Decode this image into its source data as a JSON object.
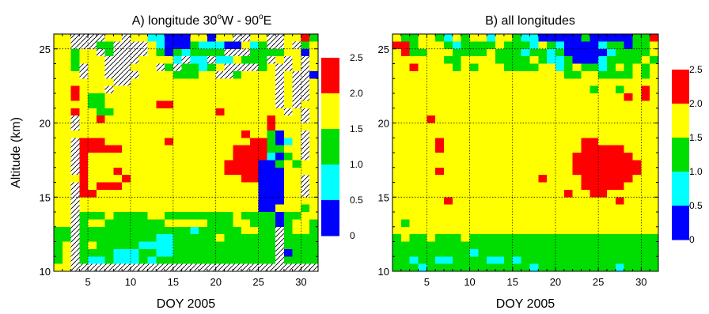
{
  "figure": {
    "colorbar_ticks": [
      "0",
      "0.5",
      "1.0",
      "1.5",
      "2.0",
      "2.5"
    ],
    "colorbar_colors": [
      "#0000ff",
      "#00ffff",
      "#00dd00",
      "#ffff00",
      "#ff0000"
    ],
    "missing_color": "#ffffff",
    "missing_hatch_color": "#000000"
  },
  "chart_data": [
    {
      "type": "heatmap",
      "title": "A) longitude 30°W - 90°E",
      "title_parts": {
        "pre": "A) longitude 30",
        "sup1": "o",
        "mid": "W - 90",
        "sup2": "o",
        "post": "E"
      },
      "xlabel": "DOY 2005",
      "ylabel": "Altitude (km)",
      "xlim": [
        1,
        32
      ],
      "ylim": [
        10,
        26
      ],
      "xticks": [
        5,
        10,
        15,
        20,
        25,
        30
      ],
      "yticks": [
        10,
        15,
        20,
        25
      ],
      "grid": true,
      "x_bins": [
        1.5,
        2.5,
        3.5,
        4.5,
        5.5,
        6.5,
        7.5,
        8.5,
        9.5,
        10.5,
        11.5,
        12.5,
        13.5,
        14.5,
        15.5,
        16.5,
        17.5,
        18.5,
        19.5,
        20.5,
        21.5,
        22.5,
        23.5,
        24.5,
        25.5,
        26.5,
        27.5,
        28.5,
        29.5,
        30.5,
        31.5
      ],
      "y_bins": [
        25.75,
        25.25,
        24.75,
        24.25,
        23.75,
        23.25,
        22.75,
        22.25,
        21.75,
        21.25,
        20.75,
        20.25,
        19.75,
        19.25,
        18.75,
        18.25,
        17.75,
        17.25,
        16.75,
        16.25,
        15.75,
        15.25,
        14.75,
        14.25,
        13.75,
        13.25,
        12.75,
        12.25,
        11.75,
        11.25,
        10.75,
        10.25
      ],
      "colorbar_ticks": [
        0,
        0.5,
        1.0,
        1.5,
        2.0,
        2.5
      ],
      "levels": [
        0.25,
        0.75,
        1.25,
        1.75,
        2.25
      ],
      "codes": "0 = no data (hatched); 1..5 = bins 0-0.5, 0.5-1.0, 1.0-1.5, 1.5-2.0, 2.0-2.5",
      "rows": [
        "4400004404422111441440044004453",
        "4400033000042111322211423004034",
        "4434403000043132333300033334414",
        "4434440000444420220224333040404",
        "4430440004440303323400003400404",
        "4440440000444433344003444404001",
        "4444444004444444444444444404004",
        "4454440444444444444444444404004",
        "4454334444444444444444444404004",
        "4444334444445544444444444404044",
        "4454433444444444444544444440404",
        "4404454444444444444444444544404",
        "4404444444444444444444444544444",
        "4444444444444444444444544314404",
        "4405554444444544444444455312404",
        "4405555544444444444445555334404",
        "4405444444444444444445555213404",
        "4405444444444444444455551134344",
        "4405444544444444444455551114444",
        "4445444454444444444444551114404",
        "4405455544444444444444441114404",
        "4405544444444444444444441114404",
        "4404444444444444444444441114444",
        "4404444444444444444444441144434",
        "4403334333344333333334333313344",
        "4403443333333444443334433313443",
        "3303333333333333233333443303443",
        "3303333333332233333433333303333",
        "3403433333222233333333333303333",
        "3403333222332233333333333301333",
        "3403223222323333333333333303333",
        "4400000000000000000000000000000"
      ]
    },
    {
      "type": "heatmap",
      "title": "B) all longitudes",
      "xlabel": "DOY 2005",
      "ylabel": "",
      "xlim": [
        1,
        32
      ],
      "ylim": [
        10,
        26
      ],
      "xticks": [
        5,
        10,
        15,
        20,
        25,
        30
      ],
      "yticks": [
        10,
        15,
        20,
        25
      ],
      "grid": true,
      "x_bins": [
        1.5,
        2.5,
        3.5,
        4.5,
        5.5,
        6.5,
        7.5,
        8.5,
        9.5,
        10.5,
        11.5,
        12.5,
        13.5,
        14.5,
        15.5,
        16.5,
        17.5,
        18.5,
        19.5,
        20.5,
        21.5,
        22.5,
        23.5,
        24.5,
        25.5,
        26.5,
        27.5,
        28.5,
        29.5,
        30.5,
        31.5
      ],
      "y_bins": [
        25.75,
        25.25,
        24.75,
        24.25,
        23.75,
        23.25,
        22.75,
        22.25,
        21.75,
        21.25,
        20.75,
        20.25,
        19.75,
        19.25,
        18.75,
        18.25,
        17.75,
        17.25,
        16.75,
        16.25,
        15.75,
        15.25,
        14.75,
        14.25,
        13.75,
        13.25,
        12.75,
        12.25,
        11.75,
        11.25,
        10.75,
        10.25
      ],
      "colorbar_ticks": [
        0,
        0.5,
        1.0,
        1.5,
        2.0,
        2.5
      ],
      "levels": [
        0.25,
        0.75,
        1.25,
        1.75,
        2.25
      ],
      "codes": "1..5 = bins 0-0.5, 0.5-1.0, 1.0-1.5, 1.5-2.0, 2.0-2.5",
      "rows": [
        "4334432434424432211111311111335",
        "5534443233334333243211112331334",
        "4533444333343332332311111233334",
        "4444443344443333432231112333343",
        "4454444343444333344234332343434",
        "4444444444444444444433443333434",
        "4444444444444444444444444444444",
        "4444444444444444444444434434454",
        "4444444444444444444444444445454",
        "4444444444444444444444444444444",
        "4444444444444444444444444444444",
        "4444544444444444444444444444444",
        "4444444444444444444444444444444",
        "4444444444444444444444444444444",
        "4444454444444444444444554444444",
        "4444454444444444444444555554444",
        "4444444444444444444445555555444",
        "4444444444444444444445555555544",
        "4444454444444444444445555555544",
        "4444444444444444454444555555444",
        "4444444444444444444444555554444",
        "4444444444444444444454455444444",
        "4444445444444444444444444454444",
        "4444444444444444444444444444444",
        "4444444444444444444444444444444",
        "4344444444444444444444444444444",
        "4444444444444444444444444444444",
        "3433433343333333333333333333333",
        "3333333333333333333333333333333",
        "3333333332333333333333333333333",
        "3323322333322323333333333333333",
        "3332333333333333233333333323333"
      ]
    }
  ]
}
